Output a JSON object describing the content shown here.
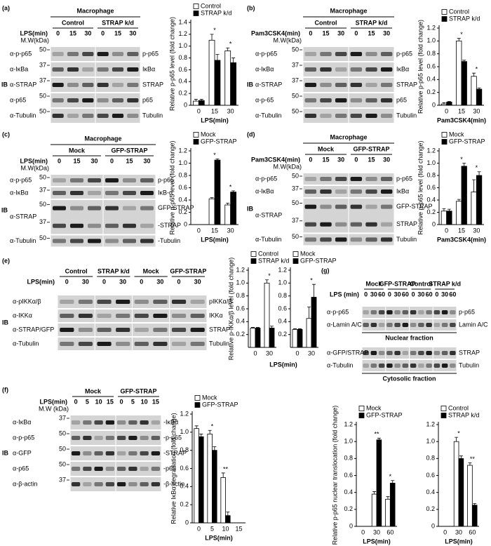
{
  "panels": [
    {
      "letter": "(a)",
      "context": "Macrophage",
      "treatment": "LPS(min)",
      "mw_header": "M.W(kDa)",
      "ib": "IB",
      "groups": [
        {
          "name": "Control",
          "lanes": [
            0,
            15,
            30
          ]
        },
        {
          "name": "STRAP k/d",
          "lanes": [
            0,
            15,
            30
          ]
        }
      ],
      "blots": [
        {
          "rows": [
            {
              "label": "α-p-p65",
              "mw": "50",
              "right": "p-p65"
            },
            {
              "label": "α-IκBa",
              "mw": "37",
              "right": "IκBα"
            },
            {
              "label": "α-STRAP",
              "mw": "37",
              "right": "STRAP"
            },
            {
              "label": "α-p65",
              "mw": "50",
              "right": "p65"
            },
            {
              "label": "α-Tubulin",
              "mw": "50",
              "right": "Tubulin"
            }
          ]
        }
      ],
      "charts": [
        {
          "type": "bar",
          "y_label": "Relative p-p65 level (fold change)",
          "x_label": "LPS(min)",
          "categories": [
            "0",
            "15",
            "30"
          ],
          "series": [
            {
              "name": "Control",
              "color": "#ffffff",
              "values": [
                0.07,
                1.1,
                0.92
              ],
              "errors": [
                0.03,
                0.1,
                0.05
              ]
            },
            {
              "name": "STRAP k/d",
              "color": "#000000",
              "values": [
                0.08,
                0.76,
                0.72
              ],
              "errors": [
                0.02,
                0.1,
                0.08
              ]
            }
          ],
          "ylim": [
            0,
            1.4
          ],
          "yticks": [
            0,
            0.2,
            0.4,
            0.6,
            0.8,
            {
              "value": 1,
              "label": "1.0"
            },
            1.2,
            1.4
          ],
          "annotations": [
            null,
            "*",
            "*"
          ]
        }
      ]
    },
    {
      "letter": "(b)",
      "context": "Macrophage",
      "treatment": "Pam3CSK4(min)",
      "mw_header": "M.W(kDa)",
      "ib": "IB",
      "groups": [
        {
          "name": "Control",
          "lanes": [
            0,
            15,
            30
          ]
        },
        {
          "name": "STRAP k/d",
          "lanes": [
            0,
            15,
            30
          ]
        }
      ],
      "blots": [
        {
          "rows": [
            {
              "label": "α-p-p65",
              "mw": "50",
              "right": "p-p65"
            },
            {
              "label": "α-IκBα",
              "mw": "37",
              "right": "IκBα"
            },
            {
              "label": "α-STRAP",
              "mw": "37",
              "right": "STRAP"
            },
            {
              "label": "α-p-65",
              "mw": "50",
              "right": "p65"
            },
            {
              "label": "α-Tubulin",
              "mw": "50",
              "right": "Tubulin"
            }
          ]
        }
      ],
      "charts": [
        {
          "type": "bar",
          "y_label": "Relative p-p65 level (fold change)",
          "x_label": "Pam3CSK4(min)",
          "categories": [
            "0",
            "15",
            "30"
          ],
          "series": [
            {
              "name": "Control",
              "color": "#ffffff",
              "values": [
                0.02,
                1.0,
                0.45
              ],
              "errors": [
                0.02,
                0.04,
                0.05
              ]
            },
            {
              "name": "STRAP k/d",
              "color": "#000000",
              "values": [
                0.05,
                0.68,
                0.25
              ],
              "errors": [
                0.01,
                0.02,
                0.02
              ]
            }
          ],
          "ylim": [
            0,
            1.2
          ],
          "yticks": [
            0,
            0.2,
            0.4,
            0.6,
            0.8,
            {
              "value": 1,
              "label": "1.0"
            },
            1.2
          ],
          "annotations": [
            null,
            "*",
            "*"
          ]
        }
      ]
    },
    {
      "letter": "(c)",
      "context": "Macrophage",
      "treatment": "LPS(min)",
      "mw_header": "M.W(kDa)",
      "ib": "IB",
      "groups": [
        {
          "name": "Mock",
          "lanes": [
            0,
            15,
            30
          ]
        },
        {
          "name": "GFP-STRAP",
          "lanes": [
            0,
            15,
            30
          ]
        }
      ],
      "blots": [
        {
          "rows": [
            {
              "label": "α-p-p65",
              "mw": "50",
              "right": "p-p65"
            },
            {
              "label": "α-IκBα",
              "mw": "37",
              "right": "IκB-α"
            },
            {
              "label": "α-STRAP",
              "mw": [
                "50",
                "37"
              ],
              "right": [
                "GFP-STRAP",
                "-STRAP"
              ]
            },
            {
              "label": "α-Tubulin",
              "mw": "50",
              "right": "-Tubulin"
            }
          ]
        }
      ],
      "charts": [
        {
          "type": "bar",
          "y_label": "Relative p-p65 level (fold change)",
          "x_label": "LPS(min)",
          "categories": [
            "0",
            "15",
            "30"
          ],
          "series": [
            {
              "name": "Mock",
              "color": "#ffffff",
              "values": [
                0.0,
                0.42,
                0.32
              ],
              "errors": [
                0,
                0.02,
                0.03
              ]
            },
            {
              "name": "GFP-STRAP",
              "color": "#000000",
              "values": [
                0.0,
                1.05,
                0.53
              ],
              "errors": [
                0,
                0.02,
                0.02
              ]
            }
          ],
          "ylim": [
            0,
            1.2
          ],
          "yticks": [
            0,
            0.2,
            0.4,
            0.6,
            0.8,
            {
              "value": 1,
              "label": "1.0"
            },
            1.2
          ],
          "annotations": [
            null,
            "*",
            "*"
          ]
        }
      ]
    },
    {
      "letter": "(d)",
      "context": "Macrophage",
      "treatment": "Pam3CSK4(min)",
      "mw_header": "M.W(kDa)",
      "ib": "IB",
      "groups": [
        {
          "name": "Mock",
          "lanes": [
            0,
            15,
            30
          ]
        },
        {
          "name": "GFP-STRAP",
          "lanes": [
            0,
            15,
            30
          ]
        }
      ],
      "blots": [
        {
          "rows": [
            {
              "label": "α-p-p65",
              "mw": "50",
              "right": "p-p65"
            },
            {
              "label": "α-IκBα",
              "mw": "37",
              "right": "IκBα"
            },
            {
              "label": "α-STRAP",
              "mw": [
                "50",
                "37"
              ],
              "right": [
                "GFP-STRAP",
                "STRAP"
              ]
            },
            {
              "label": "α-Tubulin",
              "mw": "50",
              "right": "Tubulin"
            }
          ]
        }
      ],
      "charts": [
        {
          "type": "bar",
          "y_label": "Relative p-p65 level (fold change)",
          "x_label": "Pam3CSK4(min)",
          "categories": [
            "0",
            "15",
            "30"
          ],
          "series": [
            {
              "name": "Mock",
              "color": "#ffffff",
              "values": [
                0.22,
                0.38,
                0.53
              ],
              "errors": [
                0.04,
                0.03,
                0.2
              ]
            },
            {
              "name": "GFP-STRAP",
              "color": "#000000",
              "values": [
                0.22,
                0.95,
                0.8
              ],
              "errors": [
                0.03,
                0.05,
                0.06
              ]
            }
          ],
          "ylim": [
            0,
            1.2
          ],
          "yticks": [
            0,
            0.2,
            0.4,
            0.6,
            0.8,
            {
              "value": 1,
              "label": "1.0"
            },
            1.2
          ],
          "annotations": [
            null,
            "*",
            "*"
          ]
        }
      ]
    },
    {
      "letter": "(e)",
      "treatment": "LPS(min)",
      "ib": "IB",
      "groups": [
        {
          "name": "Control",
          "lanes": [
            0,
            30
          ]
        },
        {
          "name": "STRAP k/d",
          "lanes": [
            0,
            30
          ]
        },
        {
          "name": "Mock",
          "lanes": [
            0,
            30
          ]
        },
        {
          "name": "GFP-STRAP",
          "lanes": [
            0,
            30
          ]
        }
      ],
      "blots": [
        {
          "rows": [
            {
              "label": "α-pIKKα/β",
              "right": "pIKKα/β"
            },
            {
              "label": "α-IKKα",
              "right": "IKKα"
            },
            {
              "label": "α-STRAP/GFP",
              "right": "STRAP"
            },
            {
              "label": "α-Tubulin",
              "right": "Tubulin"
            }
          ]
        }
      ],
      "y_label": "Relative p-IKKα/β level (fold change)",
      "x_label": "LPS(min)",
      "charts": [
        {
          "type": "bar",
          "categories": [
            "0",
            "30"
          ],
          "series": [
            {
              "name": "Control",
              "color": "#ffffff",
              "values": [
                0.3,
                1.0
              ],
              "errors": [
                0.01,
                0.05
              ]
            },
            {
              "name": "STRAP k/d",
              "color": "#000000",
              "values": [
                0.3,
                0.3
              ],
              "errors": [
                0.01,
                0.03
              ]
            }
          ],
          "ylim": [
            0,
            1.2
          ],
          "yticks": [
            0.2,
            0.4,
            0.6,
            0.8,
            {
              "value": 1,
              "label": "1.0"
            },
            1.2
          ],
          "annotations": [
            null,
            "*"
          ]
        },
        {
          "type": "bar",
          "categories": [
            "0",
            "30"
          ],
          "series": [
            {
              "name": "Mock",
              "color": "#ffffff",
              "values": [
                0.28,
                0.45
              ],
              "errors": [
                0.01,
                0.18
              ]
            },
            {
              "name": "GFP-STRAP",
              "color": "#000000",
              "values": [
                0.28,
                0.78
              ],
              "errors": [
                0.01,
                0.2
              ]
            }
          ],
          "ylim": [
            0,
            1.2
          ],
          "yticks": [
            0.2,
            0.4,
            0.6,
            0.8,
            {
              "value": 1,
              "label": "1.0"
            },
            1.2
          ],
          "annotations": [
            null,
            "*"
          ]
        }
      ]
    },
    {
      "letter": "(f)",
      "treatment": "LPS(min)",
      "mw_header": "M.W (kDa)",
      "ib": "IB",
      "groups": [
        {
          "name": "Mock",
          "lanes": [
            0,
            5,
            10,
            15
          ]
        },
        {
          "name": "GFP-STRAP",
          "lanes": [
            0,
            5,
            10,
            15
          ]
        }
      ],
      "blots": [
        {
          "rows": [
            {
              "label": "α-IκBα",
              "mw": "37",
              "right": "-IκBα"
            },
            {
              "label": "α-p-p65",
              "mw": "50",
              "right": "-p-p65"
            },
            {
              "label": "α-GFP",
              "mw": "50",
              "right": "-STRAP"
            },
            {
              "label": "α-p65",
              "mw": "50",
              "right": "-p65"
            },
            {
              "label": "α-β-actin",
              "mw": "37",
              "right": "-β-actin"
            }
          ]
        }
      ],
      "charts": [
        {
          "type": "bar",
          "y_label": "Relative IκBα degradation (fold change)",
          "x_label": "LPS(min)",
          "categories": [
            "0",
            "5",
            "10",
            "15"
          ],
          "series": [
            {
              "name": "Mock",
              "color": "#ffffff",
              "values": [
                1.04,
                0.98,
                0.5,
                0
              ],
              "errors": [
                0.03,
                0.04,
                0.05,
                0
              ]
            },
            {
              "name": "GFP-STRAP",
              "color": "#000000",
              "values": [
                0.95,
                0.8,
                0.08,
                0
              ],
              "errors": [
                0.03,
                0.04,
                0.04,
                0
              ]
            }
          ],
          "ylim": [
            0,
            1.2
          ],
          "yticks": [
            0,
            0.2,
            0.4,
            0.6,
            0.8,
            {
              "value": 1,
              "label": "1.0"
            },
            1.2
          ],
          "annotations": [
            null,
            "*",
            "**",
            null
          ]
        }
      ]
    },
    {
      "letter": "(g)",
      "treatment": "LPS (min)",
      "groups": [
        {
          "name": "Mock",
          "lanes": [
            0,
            30,
            60
          ]
        },
        {
          "name": "GFP-STRAP",
          "lanes": [
            0,
            30,
            60
          ]
        },
        {
          "name": "Control",
          "lanes": [
            0,
            30,
            60
          ]
        },
        {
          "name": "STRAP k/d",
          "lanes": [
            0,
            30,
            60
          ]
        }
      ],
      "blots": [
        {
          "rows": [
            {
              "label": "α-p-p65",
              "right": "p-p65"
            },
            {
              "label": "α-Lamin A/C",
              "right": "Lamin A/C"
            }
          ],
          "caption": "Nuclear fraction"
        },
        {
          "rows": [
            {
              "label": "α-GFP/STRAP",
              "right": "STRAP"
            },
            {
              "label": "α-Tubulin",
              "right": "Tubulin"
            }
          ],
          "caption": "Cytosolic fraction"
        }
      ],
      "y_label": "Relative p-p65 nuclear translocation (fold change)",
      "charts": [
        {
          "type": "bar",
          "x_label": "LPS(min)",
          "categories": [
            "0",
            "30",
            "60"
          ],
          "series": [
            {
              "name": "Mock",
              "color": "#ffffff",
              "values": [
                0,
                0.38,
                0.32
              ],
              "errors": [
                0,
                0.03,
                0.03
              ]
            },
            {
              "name": "GFP-STRAP",
              "color": "#000000",
              "values": [
                0,
                1.02,
                0.51
              ],
              "errors": [
                0,
                0.02,
                0.03
              ]
            }
          ],
          "ylim": [
            0,
            1.2
          ],
          "yticks": [
            0,
            0.2,
            0.4,
            0.6,
            0.8,
            {
              "value": 1,
              "label": "1.0"
            },
            1.2
          ],
          "annotations": [
            null,
            "**",
            "*"
          ]
        },
        {
          "type": "bar",
          "x_label": "LPS(min)",
          "categories": [
            "0",
            "30",
            "60"
          ],
          "series": [
            {
              "name": "Control",
              "color": "#ffffff",
              "values": [
                0,
                1.0,
                0.72
              ],
              "errors": [
                0,
                0.05,
                0.03
              ]
            },
            {
              "name": "STRAP k/d",
              "color": "#000000",
              "values": [
                0,
                0.8,
                0.25
              ],
              "errors": [
                0,
                0.03,
                0.02
              ]
            }
          ],
          "ylim": [
            0,
            1.2
          ],
          "yticks": [
            0,
            0.2,
            0.4,
            0.6,
            0.8,
            {
              "value": 1,
              "label": "1.0"
            },
            1.2
          ],
          "annotations": [
            null,
            "*",
            "**"
          ]
        }
      ]
    }
  ]
}
